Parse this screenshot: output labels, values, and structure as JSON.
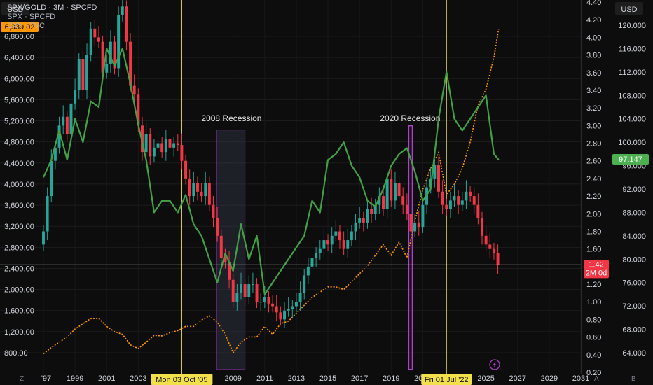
{
  "legend": {
    "line1": "SPX/GOLD · 3M · SPCFD",
    "line2": "SPX · SPCFD",
    "line3": "DXY · TVC"
  },
  "left_axis": {
    "unit_label": "USD",
    "current_label": "6,939.02",
    "current_color": "#ff9800",
    "ticks": [
      "800.00",
      "1,200.00",
      "1,600.00",
      "2,000.00",
      "2,400.00",
      "2,800.00",
      "3,200.00",
      "3,600.00",
      "4,000.00",
      "4,400.00",
      "4,800.00",
      "5,200.00",
      "5,600.00",
      "6,000.00",
      "6,400.00",
      "6,800.00"
    ]
  },
  "ratio_axis": {
    "ticks": [
      "0.20",
      "0.40",
      "0.60",
      "0.80",
      "1.00",
      "1.20",
      "1.40",
      "1.60",
      "1.80",
      "2.00",
      "2.20",
      "2.40",
      "2.60",
      "2.80",
      "3.00",
      "3.20",
      "3.40",
      "3.60",
      "3.80",
      "4.00",
      "4.20",
      "4.40"
    ],
    "current_label": "1.42",
    "countdown_label": "2M 0d",
    "current_color": "#f23645"
  },
  "right_axis": {
    "unit_label": "USD",
    "ticks": [
      "64.000",
      "68.000",
      "72.000",
      "76.000",
      "80.000",
      "84.000",
      "88.000",
      "92.000",
      "96.000",
      "100.000",
      "104.000",
      "108.000",
      "112.000",
      "116.000",
      "120.000"
    ],
    "current_label": "97.147",
    "current_color": "#4caf50"
  },
  "x_axis": {
    "ticks": [
      "'97",
      "1999",
      "2001",
      "2003",
      "2005",
      "2009",
      "2011",
      "2013",
      "2015",
      "2017",
      "2019",
      "2021",
      "2025",
      "2027",
      "2029",
      "2031"
    ],
    "crosshair_labels": [
      "Mon 03 Oct '05",
      "Fri 01 Jul '22"
    ]
  },
  "annotations": {
    "recession_2008": "2008 Recession",
    "recession_2020": "2020 Recession"
  },
  "corner_labels": {
    "bottom_left": "Z",
    "bottom_a": "A",
    "bottom_b": "B"
  },
  "colors": {
    "up": "#26a69a",
    "down": "#f23645",
    "dxy": "#43a047",
    "spx": "#ff9800",
    "vline": "#f2e04a",
    "box_2008": "#9c27b0",
    "box_2020": "#b040c8",
    "hline": "#ffffff"
  },
  "chart_data": {
    "type": "line",
    "title": "SPX/GOLD · 3M · SPCFD",
    "x_range": [
      1996.8,
      2032
    ],
    "series": [
      {
        "name": "SPX/GOLD",
        "style": "candlestick",
        "axis": "ratio",
        "points": [
          [
            1997.0,
            1.8
          ],
          [
            1997.25,
            2.2
          ],
          [
            1997.5,
            2.6
          ],
          [
            1997.75,
            2.75
          ],
          [
            1998.0,
            3.0
          ],
          [
            1998.25,
            3.1
          ],
          [
            1998.5,
            2.9
          ],
          [
            1998.75,
            3.25
          ],
          [
            1999.0,
            3.4
          ],
          [
            1999.25,
            3.75
          ],
          [
            1999.5,
            3.4
          ],
          [
            1999.75,
            3.8
          ],
          [
            2000.0,
            4.1
          ],
          [
            2000.25,
            4.0
          ],
          [
            2000.5,
            3.95
          ],
          [
            2000.75,
            3.6
          ],
          [
            2001.0,
            3.7
          ],
          [
            2001.25,
            3.95
          ],
          [
            2001.5,
            3.65
          ],
          [
            2001.75,
            4.25
          ],
          [
            2002.0,
            4.35
          ],
          [
            2002.25,
            3.95
          ],
          [
            2002.5,
            3.45
          ],
          [
            2002.75,
            3.35
          ],
          [
            2003.0,
            3.0
          ],
          [
            2003.25,
            2.7
          ],
          [
            2003.5,
            2.9
          ],
          [
            2003.75,
            2.65
          ],
          [
            2004.0,
            2.75
          ],
          [
            2004.25,
            2.8
          ],
          [
            2004.5,
            2.7
          ],
          [
            2004.75,
            2.85
          ],
          [
            2005.0,
            2.75
          ],
          [
            2005.25,
            2.8
          ],
          [
            2005.5,
            2.78
          ],
          [
            2005.75,
            2.6
          ],
          [
            2006.0,
            2.4
          ],
          [
            2006.25,
            2.2
          ],
          [
            2006.5,
            2.35
          ],
          [
            2006.75,
            2.25
          ],
          [
            2007.0,
            2.2
          ],
          [
            2007.25,
            2.35
          ],
          [
            2007.5,
            2.1
          ],
          [
            2007.75,
            1.95
          ],
          [
            2008.0,
            1.75
          ],
          [
            2008.25,
            1.5
          ],
          [
            2008.5,
            1.45
          ],
          [
            2008.75,
            1.25
          ],
          [
            2009.0,
            1.0
          ],
          [
            2009.25,
            1.1
          ],
          [
            2009.5,
            1.2
          ],
          [
            2009.75,
            1.05
          ],
          [
            2010.0,
            1.2
          ],
          [
            2010.25,
            1.2
          ],
          [
            2010.5,
            1.0
          ],
          [
            2010.75,
            1.0
          ],
          [
            2011.0,
            1.05
          ],
          [
            2011.25,
            0.98
          ],
          [
            2011.5,
            0.95
          ],
          [
            2011.75,
            0.88
          ],
          [
            2012.0,
            0.8
          ],
          [
            2012.25,
            0.9
          ],
          [
            2012.5,
            0.92
          ],
          [
            2012.75,
            0.95
          ],
          [
            2013.0,
            1.0
          ],
          [
            2013.25,
            1.1
          ],
          [
            2013.5,
            1.3
          ],
          [
            2013.75,
            1.4
          ],
          [
            2014.0,
            1.5
          ],
          [
            2014.25,
            1.55
          ],
          [
            2014.5,
            1.6
          ],
          [
            2014.75,
            1.7
          ],
          [
            2015.0,
            1.65
          ],
          [
            2015.25,
            1.75
          ],
          [
            2015.5,
            1.8
          ],
          [
            2015.75,
            1.7
          ],
          [
            2016.0,
            1.6
          ],
          [
            2016.25,
            1.7
          ],
          [
            2016.5,
            1.8
          ],
          [
            2016.75,
            1.9
          ],
          [
            2017.0,
            1.95
          ],
          [
            2017.25,
            1.9
          ],
          [
            2017.5,
            2.05
          ],
          [
            2017.75,
            2.0
          ],
          [
            2018.0,
            2.1
          ],
          [
            2018.25,
            2.2
          ],
          [
            2018.5,
            2.05
          ],
          [
            2018.75,
            2.4
          ],
          [
            2019.0,
            2.15
          ],
          [
            2019.25,
            2.35
          ],
          [
            2019.5,
            2.2
          ],
          [
            2019.75,
            2.1
          ],
          [
            2020.0,
            2.0
          ],
          [
            2020.25,
            1.8
          ],
          [
            2020.5,
            1.9
          ],
          [
            2020.75,
            1.85
          ],
          [
            2021.0,
            2.1
          ],
          [
            2021.25,
            2.3
          ],
          [
            2021.5,
            2.4
          ],
          [
            2021.75,
            2.55
          ],
          [
            2022.0,
            2.25
          ],
          [
            2022.25,
            2.1
          ],
          [
            2022.5,
            2.05
          ],
          [
            2022.75,
            2.15
          ],
          [
            2023.0,
            2.2
          ],
          [
            2023.25,
            2.1
          ],
          [
            2023.5,
            2.15
          ],
          [
            2023.75,
            2.25
          ],
          [
            2024.0,
            2.2
          ],
          [
            2024.25,
            2.1
          ],
          [
            2024.5,
            1.95
          ],
          [
            2024.75,
            1.75
          ],
          [
            2025.0,
            1.65
          ],
          [
            2025.25,
            1.6
          ],
          [
            2025.5,
            1.55
          ],
          [
            2025.75,
            1.42
          ]
        ]
      },
      {
        "name": "DXY",
        "axis": "dxy",
        "x": [
          1997.0,
          1997.5,
          1998.0,
          1998.5,
          1999.0,
          1999.5,
          2000.0,
          2000.5,
          2001.0,
          2001.5,
          2002.0,
          2002.5,
          2003.0,
          2003.5,
          2004.0,
          2004.5,
          2005.0,
          2005.5,
          2006.0,
          2006.5,
          2007.0,
          2007.5,
          2008.0,
          2008.5,
          2009.0,
          2009.5,
          2010.0,
          2010.5,
          2011.0,
          2011.5,
          2012.0,
          2012.5,
          2013.0,
          2013.5,
          2014.0,
          2014.5,
          2015.0,
          2015.5,
          2016.0,
          2016.5,
          2017.0,
          2017.5,
          2018.0,
          2018.5,
          2019.0,
          2019.5,
          2020.0,
          2020.5,
          2021.0,
          2021.5,
          2022.0,
          2022.5,
          2023.0,
          2023.5,
          2024.0,
          2024.5,
          2025.0,
          2025.5,
          2025.8
        ],
        "y": [
          94,
          97,
          102,
          97,
          104,
          100,
          107,
          106,
          116,
          113,
          116,
          110,
          103,
          97,
          88,
          90,
          90,
          88,
          91,
          86,
          84,
          80,
          76,
          81,
          78,
          86,
          80,
          84,
          74,
          76,
          78,
          80,
          82,
          84,
          90,
          88,
          97,
          98,
          100,
          96,
          94,
          90,
          89,
          92,
          96,
          98,
          99,
          95,
          90,
          92,
          104,
          112,
          104,
          102,
          104,
          106,
          108,
          98,
          97
        ]
      },
      {
        "name": "SPX",
        "axis": "spx",
        "x": [
          1997.0,
          1997.5,
          1998.0,
          1998.5,
          1999.0,
          1999.5,
          2000.0,
          2000.5,
          2001.0,
          2001.5,
          2002.0,
          2002.5,
          2003.0,
          2003.5,
          2004.0,
          2004.5,
          2005.0,
          2005.5,
          2006.0,
          2006.5,
          2007.0,
          2007.5,
          2008.0,
          2008.5,
          2009.0,
          2009.5,
          2010.0,
          2010.5,
          2011.0,
          2011.5,
          2012.0,
          2012.5,
          2013.0,
          2013.5,
          2014.0,
          2014.5,
          2015.0,
          2015.5,
          2016.0,
          2016.5,
          2017.0,
          2017.5,
          2018.0,
          2018.5,
          2019.0,
          2019.5,
          2020.0,
          2020.5,
          2021.0,
          2021.5,
          2022.0,
          2022.5,
          2023.0,
          2023.5,
          2024.0,
          2024.5,
          2025.0,
          2025.5,
          2025.8
        ],
        "y": [
          780,
          900,
          1000,
          1100,
          1250,
          1350,
          1450,
          1450,
          1300,
          1200,
          1150,
          950,
          880,
          1000,
          1130,
          1120,
          1180,
          1220,
          1300,
          1300,
          1420,
          1500,
          1380,
          1150,
          800,
          1000,
          1100,
          1100,
          1300,
          1150,
          1350,
          1400,
          1550,
          1700,
          1850,
          1950,
          2050,
          2050,
          2000,
          2150,
          2300,
          2450,
          2650,
          2850,
          2650,
          2900,
          2600,
          3300,
          3900,
          4300,
          4600,
          3800,
          4000,
          4300,
          4800,
          5500,
          5800,
          6400,
          6939
        ]
      }
    ]
  }
}
